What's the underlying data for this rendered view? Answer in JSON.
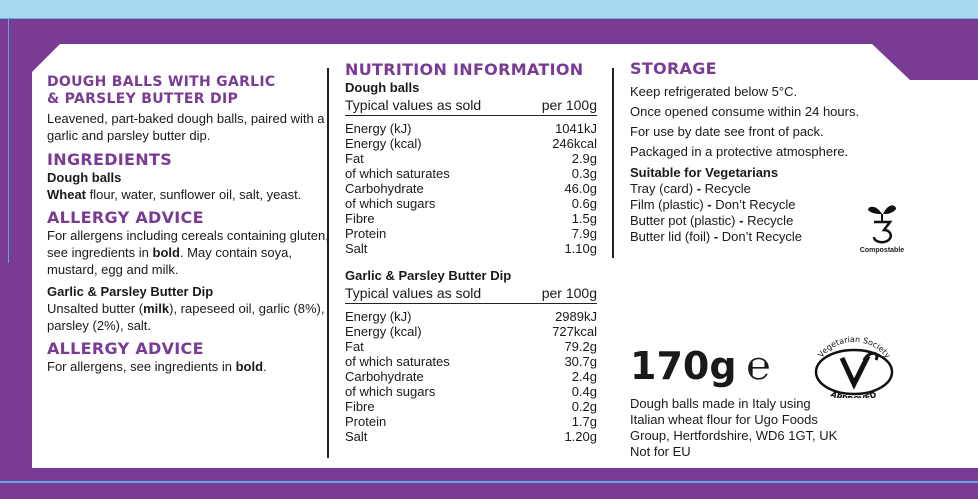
{
  "left": {
    "product_title_1": "DOUGH BALLS WITH GARLIC",
    "product_title_2": "& PARSLEY BUTTER DIP",
    "description": "Leavened, part-baked dough balls, paired with a garlic and parsley butter dip.",
    "ingredients_heading": "INGREDIENTS",
    "dough_balls_heading": "Dough balls",
    "dough_bold": "Wheat",
    "dough_rest": " flour, water, sunflower oil, salt, yeast.",
    "allergy_heading_1": "ALLERGY ADVICE",
    "allergy_text_1a": "For allergens including cereals containing gluten, see ingredients in ",
    "allergy_text_1b": "bold",
    "allergy_text_1c": ". May contain soya, mustard, egg and milk.",
    "dip_heading": "Garlic & Parsley Butter Dip",
    "dip_1": "Unsalted butter (",
    "dip_bold": "milk",
    "dip_2": "), rapeseed oil, garlic (8%), parsley (2%), salt.",
    "allergy_heading_2": "ALLERGY ADVICE",
    "allergy_text_2a": "For allergens, see ingredients in ",
    "allergy_text_2b": "bold",
    "allergy_text_2c": "."
  },
  "nutrition": {
    "heading": "NUTRITION INFORMATION",
    "tables": [
      {
        "title": "Dough balls",
        "header_left": "Typical values as sold",
        "header_right": "per 100g",
        "rows": [
          {
            "label": "Energy (kJ)",
            "value": "1041kJ"
          },
          {
            "label": "Energy (kcal)",
            "value": "246kcal"
          },
          {
            "label": "Fat",
            "value": "2.9g"
          },
          {
            "label": "of which saturates",
            "value": "0.3g"
          },
          {
            "label": "Carbohydrate",
            "value": "46.0g"
          },
          {
            "label": "of which sugars",
            "value": "0.6g"
          },
          {
            "label": "Fibre",
            "value": "1.5g"
          },
          {
            "label": "Protein",
            "value": "7.9g"
          },
          {
            "label": "Salt",
            "value": "1.10g"
          }
        ]
      },
      {
        "title": "Garlic & Parsley Butter Dip",
        "header_left": "Typical values as sold",
        "header_right": "per 100g",
        "rows": [
          {
            "label": "Energy (kJ)",
            "value": "2989kJ"
          },
          {
            "label": "Energy (kcal)",
            "value": "727kcal"
          },
          {
            "label": "Fat",
            "value": "79.2g"
          },
          {
            "label": "of which saturates",
            "value": "30.7g"
          },
          {
            "label": "Carbohydrate",
            "value": "2.4g"
          },
          {
            "label": "of which sugars",
            "value": "0.4g"
          },
          {
            "label": "Fibre",
            "value": "0.2g"
          },
          {
            "label": "Protein",
            "value": "1.7g"
          },
          {
            "label": "Salt",
            "value": "1.20g"
          }
        ]
      }
    ]
  },
  "storage": {
    "heading": "STORAGE",
    "lines": [
      "Keep refrigerated below 5°C.",
      "Once opened consume within 24 hours.",
      "For use by date see front of pack.",
      "Packaged in a protective atmosphere."
    ],
    "veg_heading": "Suitable for Vegetarians",
    "recycle": [
      {
        "item": "Tray (card)",
        "action": "Recycle"
      },
      {
        "item": "Film (plastic)",
        "action": "Don’t Recycle"
      },
      {
        "item": "Butter pot (plastic)",
        "action": "Recycle"
      },
      {
        "item": "Butter lid (foil)",
        "action": "Don’t Recycle"
      }
    ],
    "compostable_label": "Compostable",
    "weight": "170g",
    "estimated_mark": "℮",
    "veg_society_top": "Vegetarian Society",
    "veg_society_bottom": "APPROVED",
    "origin_lines": [
      "Dough balls made in Italy using",
      "Italian wheat flour for Ugo Foods",
      "Group, Hertfordshire, WD6 1GT, UK",
      "Not for EU"
    ]
  }
}
